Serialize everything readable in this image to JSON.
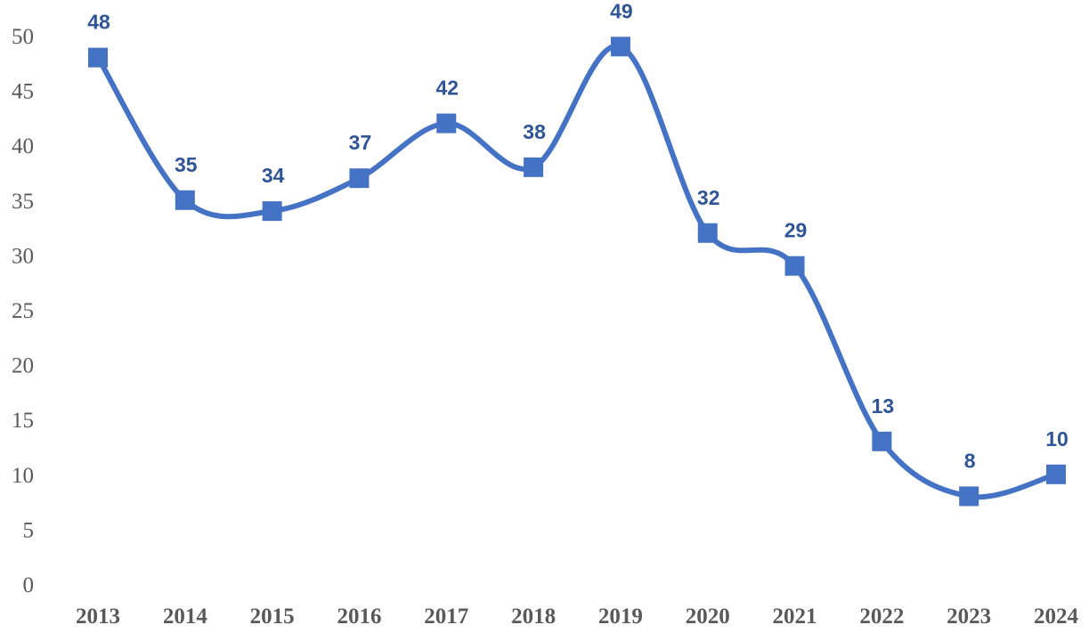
{
  "chart_data": {
    "type": "line",
    "categories": [
      "2013",
      "2014",
      "2015",
      "2016",
      "2017",
      "2018",
      "2019",
      "2020",
      "2021",
      "2022",
      "2023",
      "2024"
    ],
    "series": [
      {
        "values": [
          48,
          35,
          34,
          37,
          42,
          38,
          49,
          32,
          29,
          13,
          8,
          10
        ]
      }
    ],
    "ylim": [
      0,
      50
    ],
    "yticks": [
      "0",
      "5",
      "10",
      "15",
      "20",
      "25",
      "30",
      "35",
      "40",
      "45",
      "50"
    ],
    "grid": false,
    "legend": "none",
    "smoothed": true,
    "marker": "square",
    "colors": {
      "line": "#4472C4",
      "marker": "#4472C4",
      "data_label": "#2F5597",
      "axis_text": "#595959"
    }
  }
}
